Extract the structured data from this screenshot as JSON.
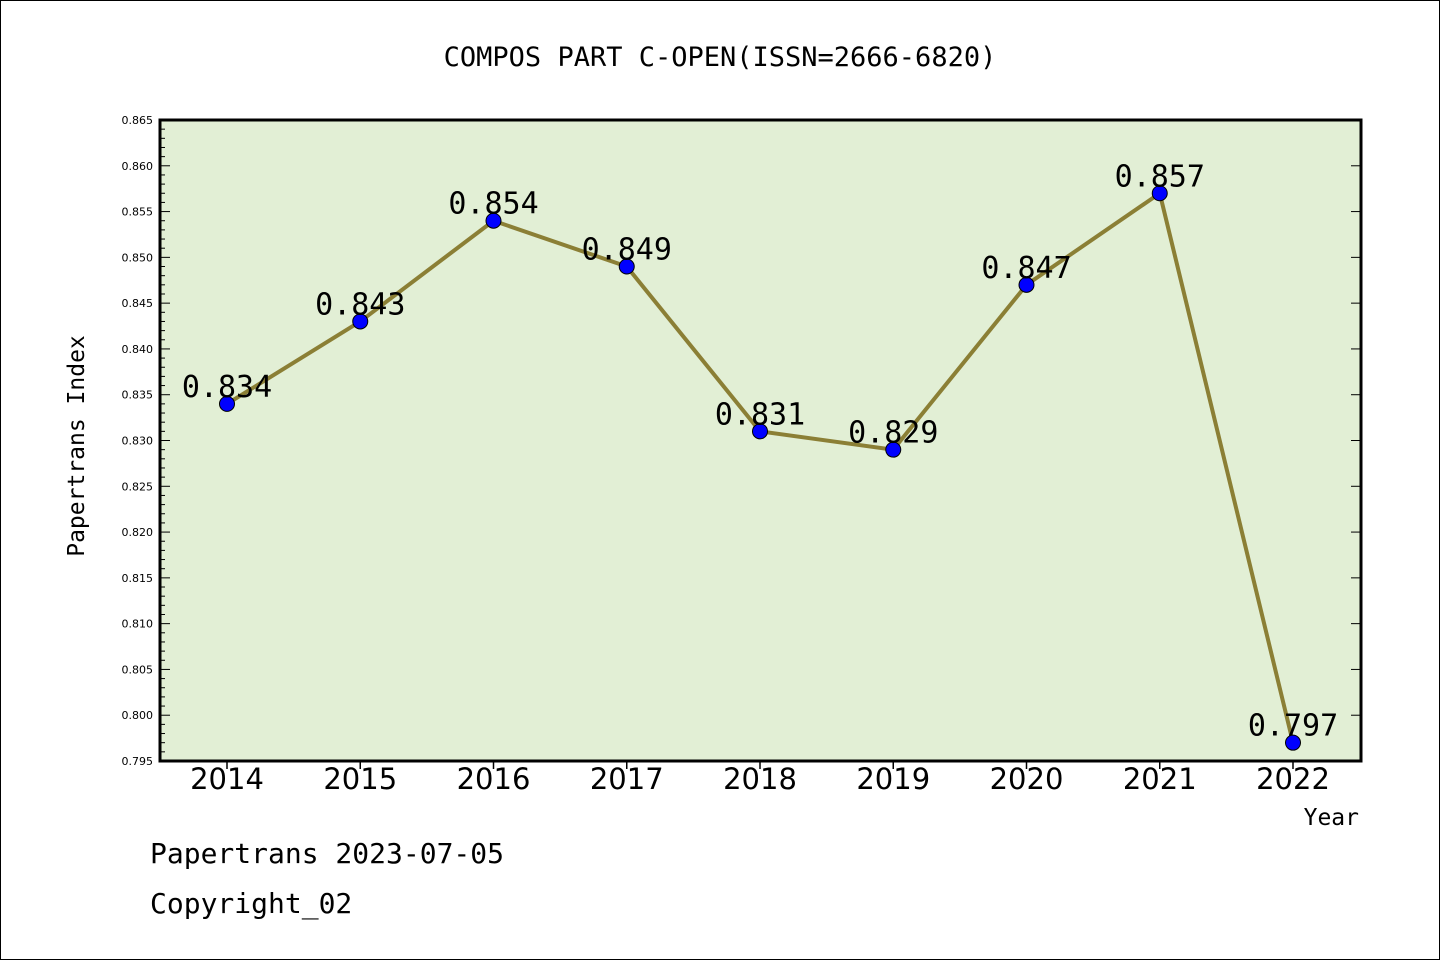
{
  "chart_data": {
    "type": "line",
    "title": "COMPOS PART C-OPEN(ISSN=2666-6820)",
    "xlabel": "Year",
    "ylabel": "Papertrans Index",
    "categories": [
      "2014",
      "2015",
      "2016",
      "2017",
      "2018",
      "2019",
      "2020",
      "2021",
      "2022"
    ],
    "values": [
      0.834,
      0.843,
      0.854,
      0.849,
      0.831,
      0.829,
      0.847,
      0.857,
      0.797
    ],
    "data_labels": [
      "0.834",
      "0.843",
      "0.854",
      "0.849",
      "0.831",
      "0.829",
      "0.847",
      "0.857",
      "0.797"
    ],
    "ylim": [
      0.795,
      0.865
    ],
    "yticks": [
      "0.795",
      "0.800",
      "0.805",
      "0.810",
      "0.815",
      "0.820",
      "0.825",
      "0.830",
      "0.835",
      "0.840",
      "0.845",
      "0.850",
      "0.855",
      "0.860",
      "0.865"
    ],
    "grid": false,
    "legend": "none",
    "colors": {
      "plot_background": "#e2efd5",
      "line": "#8b7f35",
      "marker": "#0000ff"
    }
  },
  "footer": {
    "line1": "Papertrans 2023-07-05",
    "line2": "Copyright_02"
  }
}
